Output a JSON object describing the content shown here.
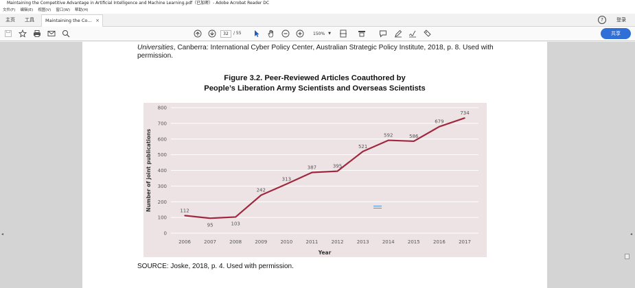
{
  "window": {
    "title": "Maintaining the Competitive Advantage in Artificial Intelligence and Machine Learning.pdf（已加密）- Adobe Acrobat Reader DC"
  },
  "menu": [
    "文件(F)",
    "编辑(E)",
    "视图(V)",
    "窗口(W)",
    "帮助(H)"
  ],
  "tabs": {
    "home": "主页",
    "tools": "工具",
    "document": "Maintaining the Co...",
    "help_label": "?",
    "login": "登录"
  },
  "toolbar": {
    "current_page": "32",
    "page_total": "/ 55",
    "zoom": "150%",
    "share_label": "共享",
    "icons": [
      "save-icon",
      "bookmark-star-icon",
      "print-icon",
      "email-icon",
      "search-zoom-icon",
      "prev-page-icon",
      "next-page-icon",
      "select-arrow-icon",
      "hand-icon",
      "zoom-out-icon",
      "zoom-in-icon",
      "fit-page-icon",
      "scroll-mode-icon",
      "comment-icon",
      "highlight-pen-icon",
      "sign-icon",
      "stamp-icon"
    ]
  },
  "document": {
    "cite_italic": "Universities",
    "cite_rest": ", Canberra: International Cyber Policy Center, Australian Strategic Policy Institute, 2018, p. 8. Used with",
    "cite_line2": "permission.",
    "figure_title_line1": "Figure 3.2. Peer-Reviewed Articles Coauthored by",
    "figure_title_line2": "People’s Liberation Army Scientists and Overseas Scientists",
    "source": "SOURCE: Joske, 2018, p. 4. Used with permission."
  },
  "chart_data": {
    "type": "line",
    "title": "",
    "xlabel": "Year",
    "ylabel": "Number of joint publications",
    "x": [
      "2006",
      "2007",
      "2008",
      "2009",
      "2010",
      "2011",
      "2012",
      "2013",
      "2014",
      "2015",
      "2016",
      "2017"
    ],
    "values": [
      112,
      95,
      103,
      242,
      313,
      387,
      395,
      521,
      592,
      586,
      679,
      734
    ],
    "ylim": [
      0,
      800
    ],
    "yticks": [
      0,
      100,
      200,
      300,
      400,
      500,
      600,
      700,
      800
    ],
    "grid": true,
    "line_color": "#a0283e",
    "background_color": "#ede3e5"
  }
}
